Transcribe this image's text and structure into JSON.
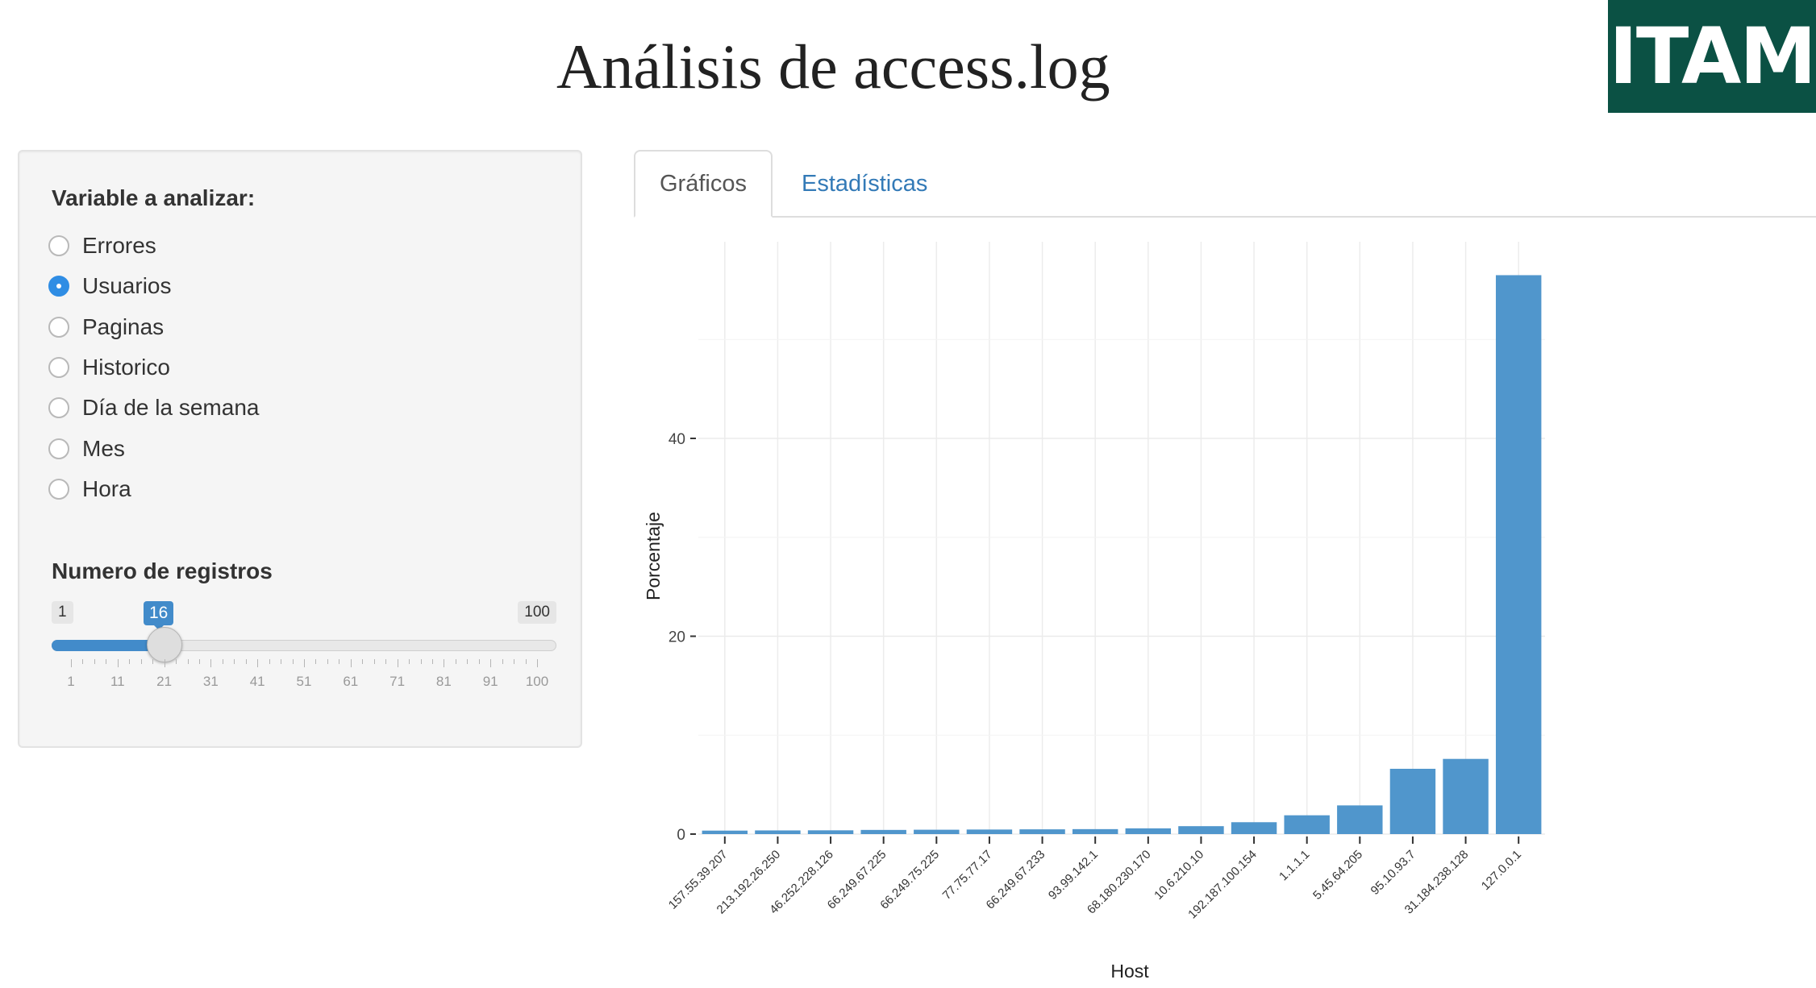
{
  "page": {
    "title": "Análisis de access.log",
    "logo_text": "ITAM"
  },
  "colors": {
    "logo_bg": "#0b5144",
    "accent": "#428bca",
    "bar": "#5096cc",
    "radio_checked": "#2f8de4",
    "tab_link": "#337ab7"
  },
  "sidebar": {
    "variable_label": "Variable a analizar:",
    "options": [
      {
        "label": "Errores",
        "checked": false
      },
      {
        "label": "Usuarios",
        "checked": true
      },
      {
        "label": "Paginas",
        "checked": false
      },
      {
        "label": "Historico",
        "checked": false
      },
      {
        "label": "Día de la semana",
        "checked": false
      },
      {
        "label": "Mes",
        "checked": false
      },
      {
        "label": "Hora",
        "checked": false
      }
    ],
    "slider": {
      "label": "Numero de registros",
      "min": 1,
      "max": 100,
      "value": 16,
      "min_label": "1",
      "max_label": "100",
      "value_label": "16",
      "grid_labels": [
        "1",
        "11",
        "21",
        "31",
        "41",
        "51",
        "61",
        "71",
        "81",
        "91",
        "100"
      ]
    }
  },
  "tabs": [
    {
      "label": "Gráficos",
      "active": true
    },
    {
      "label": "Estadísticas",
      "active": false
    }
  ],
  "chart_data": {
    "type": "bar",
    "xlabel": "Host",
    "ylabel": "Porcentaje",
    "ylim": [
      0,
      56
    ],
    "y_ticks": [
      0,
      20,
      40
    ],
    "grid": true,
    "categories": [
      "157.55.39.207",
      "213.192.26.250",
      "46.252.228.126",
      "66.249.67.225",
      "66.249.75.225",
      "77.75.77.17",
      "66.249.67.233",
      "93.99.142.1",
      "68.180.230.170",
      "10.6.210.10",
      "192.187.100.154",
      "1.1.1.1",
      "5.45.64.205",
      "95.10.93.7",
      "31.184.238.128",
      "127.0.0.1"
    ],
    "values": [
      0.35,
      0.37,
      0.38,
      0.42,
      0.44,
      0.46,
      0.48,
      0.5,
      0.58,
      0.8,
      1.2,
      1.9,
      2.9,
      6.6,
      7.6,
      56.5
    ]
  }
}
